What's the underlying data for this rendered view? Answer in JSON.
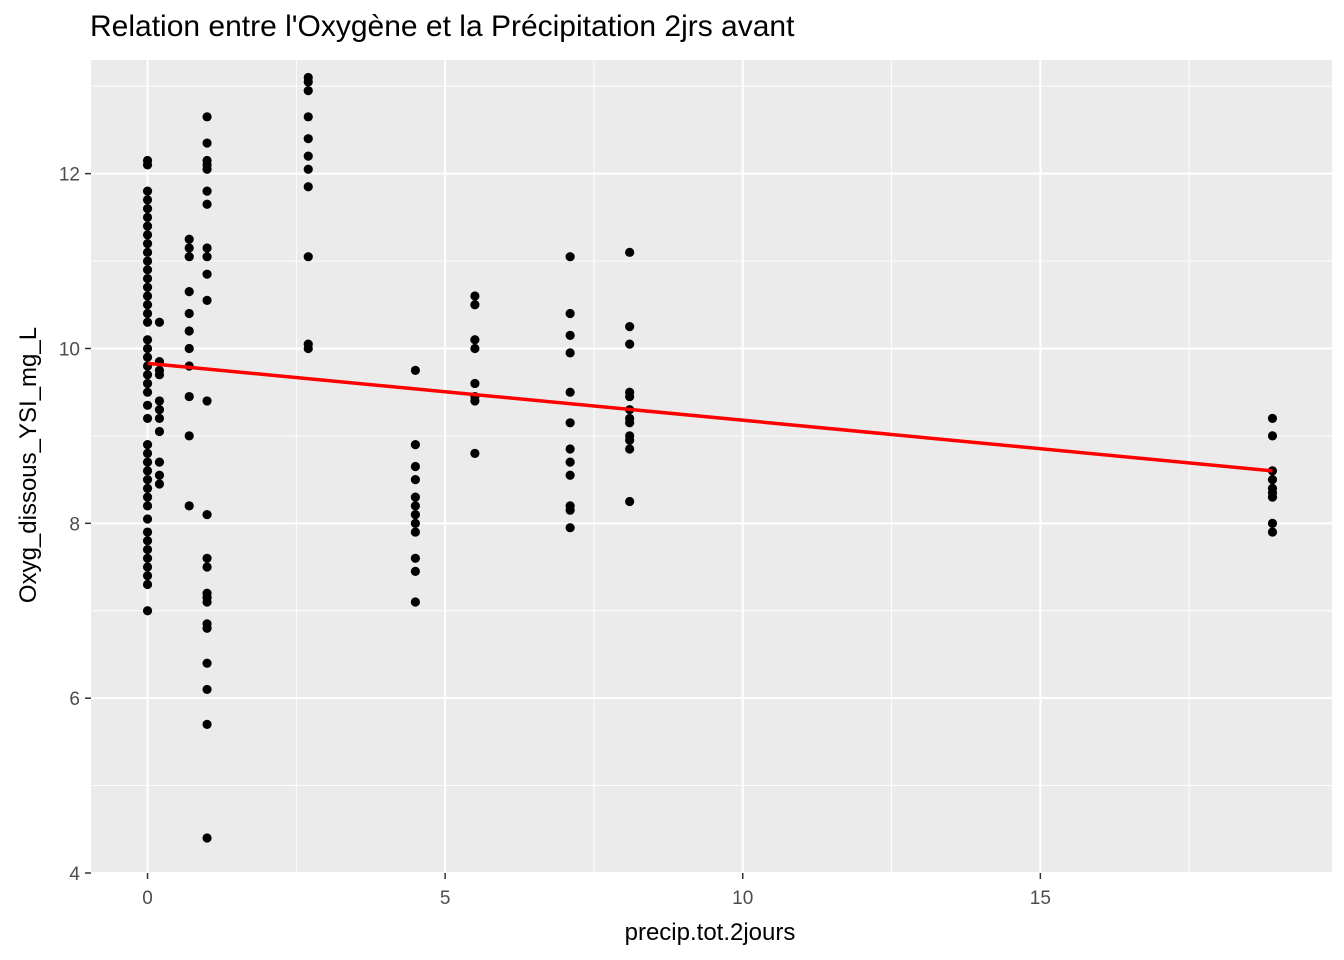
{
  "chart_data": {
    "type": "scatter",
    "title": "Relation entre l'Oxygène et la Précipitation 2jrs avant",
    "xlabel": "precip.tot.2jours",
    "ylabel": "Oxyg_dissous_YSI_mg_L",
    "xlim": [
      -0.95,
      19.9
    ],
    "ylim": [
      4,
      13.3
    ],
    "x_ticks": [
      0,
      5,
      10,
      15
    ],
    "x_tick_labels": [
      "0",
      "5",
      "10",
      "15"
    ],
    "y_ticks": [
      4,
      6,
      8,
      10,
      12
    ],
    "y_tick_labels": [
      "4",
      "6",
      "8",
      "10",
      "12"
    ],
    "grid": true,
    "colors": {
      "panel": "#ebebeb",
      "grid": "#ffffff",
      "points": "#000000",
      "trend": "#ff0000",
      "tick_text": "#4d4d4d"
    },
    "points": [
      {
        "x": 0,
        "y": 12.15
      },
      {
        "x": 0,
        "y": 12.1
      },
      {
        "x": 0,
        "y": 11.8
      },
      {
        "x": 0,
        "y": 11.7
      },
      {
        "x": 0,
        "y": 11.6
      },
      {
        "x": 0,
        "y": 11.5
      },
      {
        "x": 0,
        "y": 11.4
      },
      {
        "x": 0,
        "y": 11.3
      },
      {
        "x": 0,
        "y": 11.2
      },
      {
        "x": 0,
        "y": 11.1
      },
      {
        "x": 0,
        "y": 11.0
      },
      {
        "x": 0,
        "y": 10.9
      },
      {
        "x": 0,
        "y": 10.8
      },
      {
        "x": 0,
        "y": 10.7
      },
      {
        "x": 0,
        "y": 10.6
      },
      {
        "x": 0,
        "y": 10.5
      },
      {
        "x": 0,
        "y": 10.4
      },
      {
        "x": 0,
        "y": 10.3
      },
      {
        "x": 0,
        "y": 10.1
      },
      {
        "x": 0,
        "y": 10.0
      },
      {
        "x": 0,
        "y": 9.9
      },
      {
        "x": 0,
        "y": 9.8
      },
      {
        "x": 0,
        "y": 9.7
      },
      {
        "x": 0,
        "y": 9.6
      },
      {
        "x": 0,
        "y": 9.5
      },
      {
        "x": 0,
        "y": 9.35
      },
      {
        "x": 0,
        "y": 9.2
      },
      {
        "x": 0,
        "y": 8.9
      },
      {
        "x": 0,
        "y": 8.8
      },
      {
        "x": 0,
        "y": 8.7
      },
      {
        "x": 0,
        "y": 8.6
      },
      {
        "x": 0,
        "y": 8.5
      },
      {
        "x": 0,
        "y": 8.4
      },
      {
        "x": 0,
        "y": 8.3
      },
      {
        "x": 0,
        "y": 8.2
      },
      {
        "x": 0,
        "y": 8.05
      },
      {
        "x": 0,
        "y": 7.9
      },
      {
        "x": 0,
        "y": 7.8
      },
      {
        "x": 0,
        "y": 7.7
      },
      {
        "x": 0,
        "y": 7.6
      },
      {
        "x": 0,
        "y": 7.5
      },
      {
        "x": 0,
        "y": 7.4
      },
      {
        "x": 0,
        "y": 7.3
      },
      {
        "x": 0,
        "y": 7.0
      },
      {
        "x": 0.2,
        "y": 10.3
      },
      {
        "x": 0.2,
        "y": 9.85
      },
      {
        "x": 0.2,
        "y": 9.75
      },
      {
        "x": 0.2,
        "y": 9.7
      },
      {
        "x": 0.2,
        "y": 9.4
      },
      {
        "x": 0.2,
        "y": 9.3
      },
      {
        "x": 0.2,
        "y": 9.2
      },
      {
        "x": 0.2,
        "y": 9.05
      },
      {
        "x": 0.2,
        "y": 8.7
      },
      {
        "x": 0.2,
        "y": 8.55
      },
      {
        "x": 0.2,
        "y": 8.45
      },
      {
        "x": 0.7,
        "y": 11.25
      },
      {
        "x": 0.7,
        "y": 11.15
      },
      {
        "x": 0.7,
        "y": 11.05
      },
      {
        "x": 0.7,
        "y": 10.65
      },
      {
        "x": 0.7,
        "y": 10.4
      },
      {
        "x": 0.7,
        "y": 10.2
      },
      {
        "x": 0.7,
        "y": 10.0
      },
      {
        "x": 0.7,
        "y": 9.8
      },
      {
        "x": 0.7,
        "y": 9.45
      },
      {
        "x": 0.7,
        "y": 9.0
      },
      {
        "x": 0.7,
        "y": 8.2
      },
      {
        "x": 1.0,
        "y": 12.65
      },
      {
        "x": 1.0,
        "y": 12.35
      },
      {
        "x": 1.0,
        "y": 12.15
      },
      {
        "x": 1.0,
        "y": 12.1
      },
      {
        "x": 1.0,
        "y": 12.05
      },
      {
        "x": 1.0,
        "y": 11.8
      },
      {
        "x": 1.0,
        "y": 11.65
      },
      {
        "x": 1.0,
        "y": 11.15
      },
      {
        "x": 1.0,
        "y": 11.05
      },
      {
        "x": 1.0,
        "y": 10.85
      },
      {
        "x": 1.0,
        "y": 10.55
      },
      {
        "x": 1.0,
        "y": 9.4
      },
      {
        "x": 1.0,
        "y": 8.1
      },
      {
        "x": 1.0,
        "y": 7.6
      },
      {
        "x": 1.0,
        "y": 7.5
      },
      {
        "x": 1.0,
        "y": 7.2
      },
      {
        "x": 1.0,
        "y": 7.15
      },
      {
        "x": 1.0,
        "y": 7.1
      },
      {
        "x": 1.0,
        "y": 6.85
      },
      {
        "x": 1.0,
        "y": 6.8
      },
      {
        "x": 1.0,
        "y": 6.4
      },
      {
        "x": 1.0,
        "y": 6.1
      },
      {
        "x": 1.0,
        "y": 5.7
      },
      {
        "x": 1.0,
        "y": 4.4
      },
      {
        "x": 2.7,
        "y": 13.1
      },
      {
        "x": 2.7,
        "y": 13.05
      },
      {
        "x": 2.7,
        "y": 12.95
      },
      {
        "x": 2.7,
        "y": 12.65
      },
      {
        "x": 2.7,
        "y": 12.4
      },
      {
        "x": 2.7,
        "y": 12.2
      },
      {
        "x": 2.7,
        "y": 12.05
      },
      {
        "x": 2.7,
        "y": 11.85
      },
      {
        "x": 2.7,
        "y": 11.05
      },
      {
        "x": 2.7,
        "y": 10.05
      },
      {
        "x": 2.7,
        "y": 10.0
      },
      {
        "x": 4.5,
        "y": 9.75
      },
      {
        "x": 4.5,
        "y": 8.9
      },
      {
        "x": 4.5,
        "y": 8.65
      },
      {
        "x": 4.5,
        "y": 8.5
      },
      {
        "x": 4.5,
        "y": 8.3
      },
      {
        "x": 4.5,
        "y": 8.2
      },
      {
        "x": 4.5,
        "y": 8.1
      },
      {
        "x": 4.5,
        "y": 8.0
      },
      {
        "x": 4.5,
        "y": 7.9
      },
      {
        "x": 4.5,
        "y": 7.6
      },
      {
        "x": 4.5,
        "y": 7.45
      },
      {
        "x": 4.5,
        "y": 7.1
      },
      {
        "x": 5.5,
        "y": 10.6
      },
      {
        "x": 5.5,
        "y": 10.5
      },
      {
        "x": 5.5,
        "y": 10.1
      },
      {
        "x": 5.5,
        "y": 10.0
      },
      {
        "x": 5.5,
        "y": 9.6
      },
      {
        "x": 5.5,
        "y": 9.45
      },
      {
        "x": 5.5,
        "y": 9.4
      },
      {
        "x": 5.5,
        "y": 8.8
      },
      {
        "x": 7.1,
        "y": 11.05
      },
      {
        "x": 7.1,
        "y": 10.4
      },
      {
        "x": 7.1,
        "y": 10.15
      },
      {
        "x": 7.1,
        "y": 9.95
      },
      {
        "x": 7.1,
        "y": 9.5
      },
      {
        "x": 7.1,
        "y": 9.15
      },
      {
        "x": 7.1,
        "y": 8.85
      },
      {
        "x": 7.1,
        "y": 8.7
      },
      {
        "x": 7.1,
        "y": 8.55
      },
      {
        "x": 7.1,
        "y": 8.2
      },
      {
        "x": 7.1,
        "y": 8.15
      },
      {
        "x": 7.1,
        "y": 7.95
      },
      {
        "x": 8.1,
        "y": 11.1
      },
      {
        "x": 8.1,
        "y": 10.25
      },
      {
        "x": 8.1,
        "y": 10.05
      },
      {
        "x": 8.1,
        "y": 9.5
      },
      {
        "x": 8.1,
        "y": 9.45
      },
      {
        "x": 8.1,
        "y": 9.3
      },
      {
        "x": 8.1,
        "y": 9.2
      },
      {
        "x": 8.1,
        "y": 9.15
      },
      {
        "x": 8.1,
        "y": 9.0
      },
      {
        "x": 8.1,
        "y": 8.95
      },
      {
        "x": 8.1,
        "y": 8.85
      },
      {
        "x": 8.1,
        "y": 8.25
      },
      {
        "x": 18.9,
        "y": 9.2
      },
      {
        "x": 18.9,
        "y": 9.0
      },
      {
        "x": 18.9,
        "y": 8.6
      },
      {
        "x": 18.9,
        "y": 8.5
      },
      {
        "x": 18.9,
        "y": 8.4
      },
      {
        "x": 18.9,
        "y": 8.35
      },
      {
        "x": 18.9,
        "y": 8.3
      },
      {
        "x": 18.9,
        "y": 8.0
      },
      {
        "x": 18.9,
        "y": 7.9
      }
    ],
    "trend_line": {
      "x": [
        0,
        18.9
      ],
      "y": [
        9.83,
        8.6
      ]
    }
  }
}
